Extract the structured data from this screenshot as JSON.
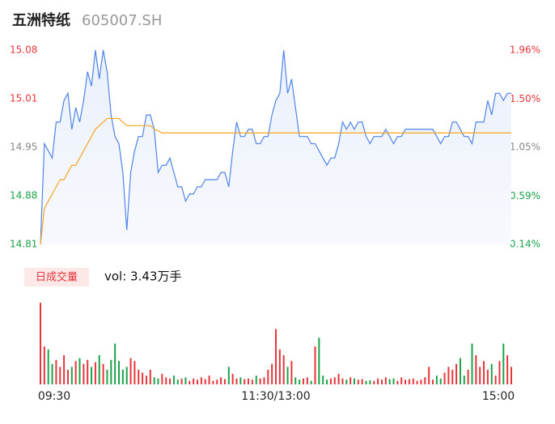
{
  "chart_data": {
    "type": "line",
    "title": "五洲特纸",
    "subtitle": "605007.SH",
    "volume_title": "日成交量",
    "volume_text": "vol: 3.43万手",
    "color": "#4f84e8",
    "avg_color": "#f5a623",
    "up_color": "#e8353b",
    "down_color": "#1aa34a",
    "ytick_colors": [
      "#e8353b",
      "#e8353b",
      "#888888",
      "#1aa34a",
      "#1aa34a"
    ],
    "xlim": [
      0,
      240
    ],
    "xticks": [
      {
        "value": 0,
        "label": "09:30"
      },
      {
        "value": 120,
        "label": "11:30/13:00"
      },
      {
        "value": 240,
        "label": "15:00"
      }
    ],
    "ylim": [
      14.81,
      15.08
    ],
    "yticks": [
      15.08,
      {
        "value": 15.0125,
        "label": "15.01"
      },
      {
        "value": 14.945,
        "label": "14.95"
      },
      {
        "value": 14.8775,
        "label": "14.88"
      },
      14.81
    ],
    "y2lim": [
      0.14,
      1.96
    ],
    "y2ticks": [
      {
        "value": 1.96,
        "label": "1.96%"
      },
      {
        "value": 1.5,
        "label": "1.50%"
      },
      {
        "value": 1.05,
        "label": "1.05%"
      },
      {
        "value": 0.59,
        "label": "0.59%"
      },
      {
        "value": 0.14,
        "label": "0.14%"
      }
    ],
    "vol_ylim": [
      0,
      1500
    ],
    "x": [
      0,
      2,
      4,
      6,
      8,
      10,
      12,
      14,
      16,
      18,
      20,
      22,
      24,
      26,
      28,
      30,
      32,
      34,
      36,
      38,
      40,
      42,
      44,
      46,
      48,
      50,
      52,
      54,
      56,
      58,
      60,
      62,
      64,
      66,
      68,
      70,
      72,
      74,
      76,
      78,
      80,
      82,
      84,
      86,
      88,
      90,
      92,
      94,
      96,
      98,
      100,
      102,
      104,
      106,
      108,
      110,
      112,
      114,
      116,
      118,
      120,
      122,
      124,
      126,
      128,
      130,
      132,
      134,
      136,
      138,
      140,
      142,
      144,
      146,
      148,
      150,
      152,
      154,
      156,
      158,
      160,
      162,
      164,
      166,
      168,
      170,
      172,
      174,
      176,
      178,
      180,
      182,
      184,
      186,
      188,
      190,
      192,
      194,
      196,
      198,
      200,
      202,
      204,
      206,
      208,
      210,
      212,
      214,
      216,
      218,
      220,
      222,
      224,
      226,
      228,
      230,
      232,
      234,
      236,
      238,
      240
    ],
    "values": [
      14.81,
      14.95,
      14.94,
      14.93,
      14.98,
      14.98,
      15.01,
      15.02,
      14.97,
      15.0,
      14.98,
      15.01,
      15.05,
      15.03,
      15.08,
      15.04,
      15.08,
      15.05,
      14.99,
      14.96,
      14.95,
      14.91,
      14.83,
      14.91,
      14.94,
      14.96,
      14.96,
      14.99,
      14.99,
      14.97,
      14.91,
      14.92,
      14.92,
      14.93,
      14.91,
      14.89,
      14.89,
      14.87,
      14.88,
      14.88,
      14.89,
      14.89,
      14.9,
      14.9,
      14.9,
      14.9,
      14.91,
      14.91,
      14.89,
      14.94,
      14.98,
      14.96,
      14.96,
      14.97,
      14.97,
      14.95,
      14.95,
      14.96,
      14.96,
      14.99,
      15.01,
      15.02,
      15.08,
      15.02,
      15.04,
      15.0,
      14.96,
      14.96,
      14.96,
      14.95,
      14.95,
      14.94,
      14.93,
      14.92,
      14.93,
      14.93,
      14.95,
      14.98,
      14.97,
      14.98,
      14.97,
      14.98,
      14.98,
      14.96,
      14.95,
      14.96,
      14.96,
      14.96,
      14.97,
      14.96,
      14.95,
      14.96,
      14.96,
      14.97,
      14.97,
      14.97,
      14.97,
      14.97,
      14.97,
      14.97,
      14.97,
      14.96,
      14.95,
      14.96,
      14.96,
      14.98,
      14.98,
      14.97,
      14.96,
      14.96,
      14.95,
      14.98,
      14.98,
      14.98,
      15.01,
      14.99,
      15.02,
      15.02,
      15.01,
      15.02,
      15.02
    ],
    "avg_values": [
      14.81,
      14.86,
      14.87,
      14.88,
      14.89,
      14.9,
      14.9,
      14.91,
      14.92,
      14.92,
      14.93,
      14.94,
      14.95,
      14.96,
      14.97,
      14.975,
      14.98,
      14.985,
      14.985,
      14.985,
      14.985,
      14.98,
      14.975,
      14.975,
      14.975,
      14.975,
      14.975,
      14.975,
      14.975,
      14.97,
      14.968,
      14.965,
      14.965,
      14.965,
      14.965,
      14.965,
      14.965,
      14.965,
      14.965,
      14.965,
      14.965,
      14.965,
      14.965,
      14.965,
      14.965,
      14.965,
      14.965,
      14.965,
      14.965,
      14.965,
      14.965,
      14.965,
      14.965,
      14.965,
      14.965,
      14.965,
      14.965,
      14.965,
      14.965,
      14.965,
      14.965,
      14.965,
      14.965,
      14.965,
      14.965,
      14.965,
      14.965,
      14.965,
      14.965,
      14.965,
      14.965,
      14.965,
      14.965,
      14.965,
      14.965,
      14.965,
      14.965,
      14.965,
      14.965,
      14.965,
      14.965,
      14.965,
      14.965,
      14.965,
      14.965,
      14.965,
      14.965,
      14.965,
      14.965,
      14.965,
      14.965,
      14.965,
      14.965,
      14.965,
      14.965,
      14.965,
      14.965,
      14.965,
      14.965,
      14.965,
      14.965,
      14.965,
      14.965,
      14.965,
      14.965,
      14.965,
      14.965,
      14.965,
      14.965,
      14.965,
      14.965,
      14.965,
      14.965,
      14.965,
      14.965,
      14.965,
      14.965,
      14.965,
      14.965,
      14.965,
      14.965
    ],
    "volumes": [
      1400,
      650,
      600,
      350,
      420,
      300,
      500,
      250,
      300,
      400,
      450,
      350,
      420,
      300,
      380,
      500,
      350,
      250,
      420,
      700,
      400,
      250,
      300,
      450,
      400,
      250,
      200,
      150,
      250,
      120,
      100,
      180,
      120,
      100,
      150,
      80,
      100,
      120,
      60,
      100,
      80,
      120,
      90,
      150,
      60,
      80,
      120,
      90,
      300,
      180,
      100,
      120,
      90,
      100,
      80,
      150,
      100,
      120,
      250,
      350,
      950,
      600,
      500,
      300,
      400,
      120,
      80,
      100,
      120,
      60,
      650,
      800,
      150,
      80,
      100,
      120,
      180,
      100,
      80,
      120,
      100,
      80,
      90,
      60,
      70,
      60,
      100,
      80,
      120,
      90,
      100,
      60,
      120,
      80,
      90,
      100,
      60,
      80,
      120,
      300,
      80,
      150,
      100,
      200,
      300,
      250,
      350,
      450,
      150,
      250,
      700,
      500,
      300,
      400,
      250,
      350,
      150,
      400,
      700,
      500,
      300
    ]
  }
}
